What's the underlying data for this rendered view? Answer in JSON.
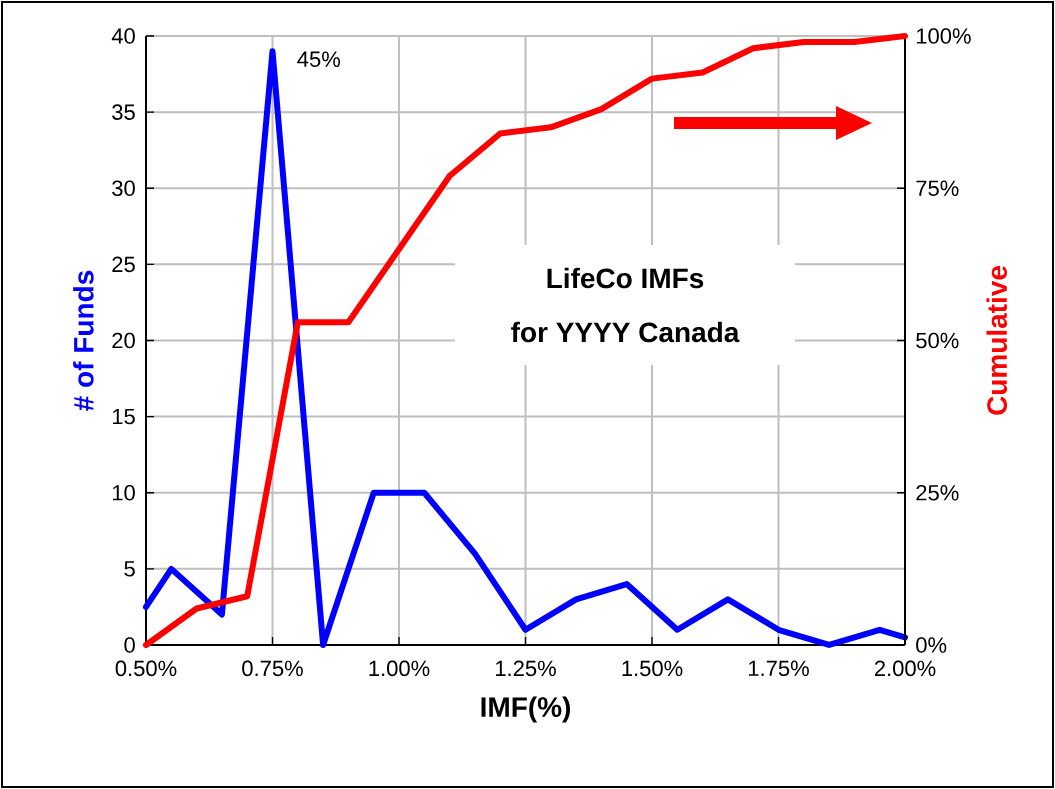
{
  "chart_data": {
    "type": "line",
    "title": "LifeCo IMFs",
    "subtitle": "for YYYY Canada",
    "xlabel": "IMF(%)",
    "ylabel": "# of Funds",
    "y2label": "Cumulative",
    "series": [
      {
        "color": "#0000ff",
        "x": [
          0.5,
          0.55,
          0.65,
          0.75,
          0.85,
          0.95,
          1.05,
          1.15,
          1.25,
          1.35,
          1.45,
          1.55,
          1.65,
          1.75,
          1.85,
          1.95,
          2.0
        ],
        "values": [
          2.5,
          5,
          2,
          39,
          0,
          10,
          10,
          6,
          1,
          3,
          4,
          1,
          3,
          1,
          0,
          1,
          0.5
        ]
      },
      {
        "color": "#ff0000",
        "axis": "y2",
        "x": [
          0.5,
          0.6,
          0.7,
          0.8,
          0.9,
          1.1,
          1.2,
          1.3,
          1.4,
          1.5,
          1.6,
          1.7,
          1.8,
          1.9,
          2.0
        ],
        "values": [
          0,
          6,
          8,
          53,
          53,
          77,
          84,
          85,
          88,
          93,
          94,
          98,
          99,
          99,
          100
        ]
      }
    ],
    "xlim": [
      0.5,
      2.0
    ],
    "xticks": [
      {
        "value": 0.5,
        "label": "0.50%"
      },
      {
        "value": 0.75,
        "label": "0.75%"
      },
      {
        "value": 1.0,
        "label": "1.00%"
      },
      {
        "value": 1.25,
        "label": "1.25%"
      },
      {
        "value": 1.5,
        "label": "1.50%"
      },
      {
        "value": 1.75,
        "label": "1.75%"
      },
      {
        "value": 2.0,
        "label": "2.00%"
      }
    ],
    "ylim": [
      0,
      40
    ],
    "yticks": [
      0,
      5,
      10,
      15,
      20,
      25,
      30,
      35,
      40
    ],
    "y2lim": [
      0,
      100
    ],
    "y2ticks": [
      {
        "value": 0,
        "label": "0%"
      },
      {
        "value": 25,
        "label": "25%"
      },
      {
        "value": 50,
        "label": "50%"
      },
      {
        "value": 75,
        "label": "75%"
      },
      {
        "value": 100,
        "label": "100%"
      }
    ],
    "annotations": [
      {
        "text": "45%",
        "x": 0.75,
        "y": 39
      }
    ],
    "grid": true
  }
}
